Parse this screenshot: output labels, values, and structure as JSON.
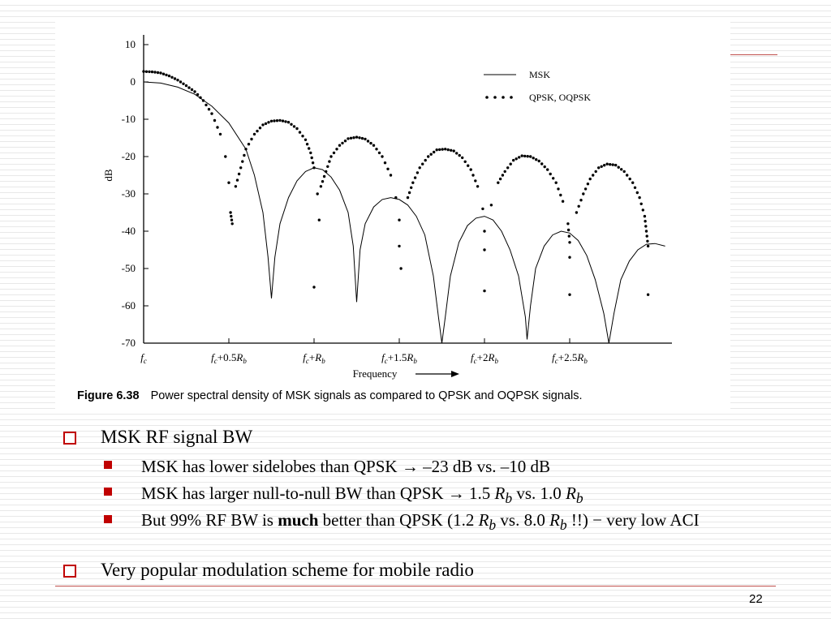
{
  "figure": {
    "caption_label": "Figure 6.38",
    "caption_text": "Power spectral density of MSK signals as compared to QPSK and OQPSK signals."
  },
  "chart_data": {
    "type": "line",
    "ylabel": "dB",
    "xlabel": "Frequency",
    "ylim": [
      -70,
      10
    ],
    "xlim": [
      0,
      3.1
    ],
    "x_unit": "R_b offset from f_c",
    "y_ticks": [
      "10",
      "0",
      "-10",
      "-20",
      "-30",
      "-40",
      "-50",
      "-60",
      "-70"
    ],
    "x_ticks": [
      {
        "value": 0,
        "base": "f",
        "sub": "c",
        "rest": "",
        "rb": false
      },
      {
        "value": 0.5,
        "base": "f",
        "sub": "c",
        "rest": "+0.5",
        "rb": true
      },
      {
        "value": 1.0,
        "base": "f",
        "sub": "c",
        "rest": "+",
        "rb": true
      },
      {
        "value": 1.5,
        "base": "f",
        "sub": "c",
        "rest": "+1.5",
        "rb": true
      },
      {
        "value": 2.0,
        "base": "f",
        "sub": "c",
        "rest": "+2",
        "rb": true
      },
      {
        "value": 2.5,
        "base": "f",
        "sub": "c",
        "rest": "+2.5",
        "rb": true
      }
    ],
    "legend_position": "top-right",
    "series": [
      {
        "name": "MSK",
        "style": "solid",
        "points": [
          [
            0,
            0.0
          ],
          [
            0.1,
            -0.3
          ],
          [
            0.2,
            -1.4
          ],
          [
            0.3,
            -3.3
          ],
          [
            0.4,
            -6.5
          ],
          [
            0.5,
            -11
          ],
          [
            0.6,
            -18
          ],
          [
            0.65,
            -25
          ],
          [
            0.7,
            -35
          ],
          [
            0.73,
            -47
          ],
          [
            0.75,
            -58
          ],
          [
            0.77,
            -47
          ],
          [
            0.8,
            -38
          ],
          [
            0.85,
            -31
          ],
          [
            0.9,
            -26.5
          ],
          [
            0.95,
            -24
          ],
          [
            1.0,
            -23
          ],
          [
            1.05,
            -23.5
          ],
          [
            1.1,
            -25.5
          ],
          [
            1.15,
            -29
          ],
          [
            1.2,
            -35
          ],
          [
            1.23,
            -44
          ],
          [
            1.25,
            -59
          ],
          [
            1.27,
            -45
          ],
          [
            1.3,
            -38
          ],
          [
            1.35,
            -33.5
          ],
          [
            1.4,
            -31.5
          ],
          [
            1.45,
            -31
          ],
          [
            1.5,
            -31.5
          ],
          [
            1.55,
            -33
          ],
          [
            1.6,
            -36
          ],
          [
            1.65,
            -41
          ],
          [
            1.7,
            -52
          ],
          [
            1.73,
            -63
          ],
          [
            1.75,
            -70
          ],
          [
            1.77,
            -63
          ],
          [
            1.8,
            -52
          ],
          [
            1.85,
            -43
          ],
          [
            1.9,
            -38.5
          ],
          [
            1.95,
            -36.5
          ],
          [
            2.0,
            -36
          ],
          [
            2.05,
            -37
          ],
          [
            2.1,
            -40
          ],
          [
            2.15,
            -45
          ],
          [
            2.2,
            -52
          ],
          [
            2.24,
            -63
          ],
          [
            2.25,
            -69
          ],
          [
            2.27,
            -60
          ],
          [
            2.3,
            -50
          ],
          [
            2.35,
            -44
          ],
          [
            2.4,
            -41
          ],
          [
            2.45,
            -40
          ],
          [
            2.5,
            -40.5
          ],
          [
            2.55,
            -42.5
          ],
          [
            2.6,
            -46.5
          ],
          [
            2.65,
            -53
          ],
          [
            2.7,
            -62
          ],
          [
            2.73,
            -70
          ],
          [
            2.76,
            -62
          ],
          [
            2.8,
            -53
          ],
          [
            2.85,
            -48
          ],
          [
            2.9,
            -45
          ],
          [
            2.95,
            -43.5
          ],
          [
            3.0,
            -43.3
          ],
          [
            3.06,
            -44
          ]
        ]
      },
      {
        "name": "QPSK, OQPSK",
        "style": "dotted",
        "points": [
          [
            0,
            2.8
          ],
          [
            0.05,
            2.7
          ],
          [
            0.1,
            2.4
          ],
          [
            0.15,
            1.6
          ],
          [
            0.2,
            0.5
          ],
          [
            0.25,
            -1
          ],
          [
            0.3,
            -2.6
          ],
          [
            0.35,
            -5
          ],
          [
            0.4,
            -8.5
          ],
          [
            0.45,
            -14
          ],
          [
            0.48,
            -20
          ],
          [
            0.5,
            -27
          ],
          [
            0.51,
            -35
          ],
          [
            0.52,
            -38
          ],
          [
            0.54,
            -28
          ],
          [
            0.57,
            -23
          ],
          [
            0.6,
            -18
          ],
          [
            0.65,
            -14
          ],
          [
            0.7,
            -11.5
          ],
          [
            0.75,
            -10.5
          ],
          [
            0.8,
            -10.3
          ],
          [
            0.85,
            -10.8
          ],
          [
            0.9,
            -12.5
          ],
          [
            0.95,
            -15.5
          ],
          [
            0.98,
            -19
          ],
          [
            1.0,
            -23
          ],
          [
            1.02,
            -30
          ],
          [
            1.03,
            -37
          ],
          [
            1.0,
            -55
          ],
          [
            1.04,
            -28
          ],
          [
            1.07,
            -24
          ],
          [
            1.1,
            -20
          ],
          [
            1.15,
            -17
          ],
          [
            1.2,
            -15.2
          ],
          [
            1.25,
            -14.8
          ],
          [
            1.3,
            -15.3
          ],
          [
            1.35,
            -17
          ],
          [
            1.4,
            -20
          ],
          [
            1.45,
            -25
          ],
          [
            1.48,
            -31
          ],
          [
            1.5,
            -37
          ],
          [
            1.5,
            -44
          ],
          [
            1.51,
            -50
          ],
          [
            1.55,
            -31
          ],
          [
            1.58,
            -27
          ],
          [
            1.62,
            -23
          ],
          [
            1.67,
            -20
          ],
          [
            1.72,
            -18.2
          ],
          [
            1.77,
            -18
          ],
          [
            1.82,
            -18.5
          ],
          [
            1.87,
            -20.3
          ],
          [
            1.92,
            -23.5
          ],
          [
            1.96,
            -28
          ],
          [
            1.99,
            -34
          ],
          [
            2.0,
            -40
          ],
          [
            2.0,
            -45
          ],
          [
            2.0,
            -56
          ],
          [
            2.04,
            -33
          ],
          [
            2.08,
            -27
          ],
          [
            2.12,
            -24
          ],
          [
            2.17,
            -21
          ],
          [
            2.22,
            -19.8
          ],
          [
            2.27,
            -20
          ],
          [
            2.32,
            -21.2
          ],
          [
            2.37,
            -23.5
          ],
          [
            2.42,
            -27
          ],
          [
            2.46,
            -32
          ],
          [
            2.49,
            -38
          ],
          [
            2.5,
            -43
          ],
          [
            2.5,
            -47
          ],
          [
            2.5,
            -57
          ],
          [
            2.54,
            -35
          ],
          [
            2.58,
            -30
          ],
          [
            2.62,
            -26
          ],
          [
            2.67,
            -23
          ],
          [
            2.72,
            -22
          ],
          [
            2.77,
            -22.3
          ],
          [
            2.82,
            -24
          ],
          [
            2.87,
            -27
          ],
          [
            2.91,
            -31
          ],
          [
            2.94,
            -36
          ],
          [
            2.95,
            -40
          ],
          [
            2.96,
            -44
          ],
          [
            2.96,
            -57
          ]
        ]
      }
    ]
  },
  "bullets": [
    {
      "level": 1,
      "text": "MSK RF signal BW"
    },
    {
      "level": 2,
      "text": "MSK has lower sidelobes than QPSK → –23 dB vs. –10 dB"
    },
    {
      "level": 2,
      "pre": "MSK has larger null-to-null BW than QPSK → 1.5 ",
      "rb1_base": "R",
      "rb1_sub": "b",
      "mid": " vs. 1.0 ",
      "rb2_base": "R",
      "rb2_sub": "b"
    },
    {
      "level": 2,
      "pre": "But 99% RF BW is ",
      "bold": "much",
      "mid1": " better than QPSK (1.2 ",
      "rb1_base": "R",
      "rb1_sub": "b",
      "mid2": " vs. 8.0 ",
      "rb2_base": "R",
      "rb2_sub": "b",
      "post": " !!) − very low ACI"
    },
    {
      "level": 1,
      "text": "Very popular modulation scheme for mobile radio"
    }
  ],
  "page_number": "22",
  "colors": {
    "accent": "#c00000",
    "rule": "#c0504d"
  }
}
